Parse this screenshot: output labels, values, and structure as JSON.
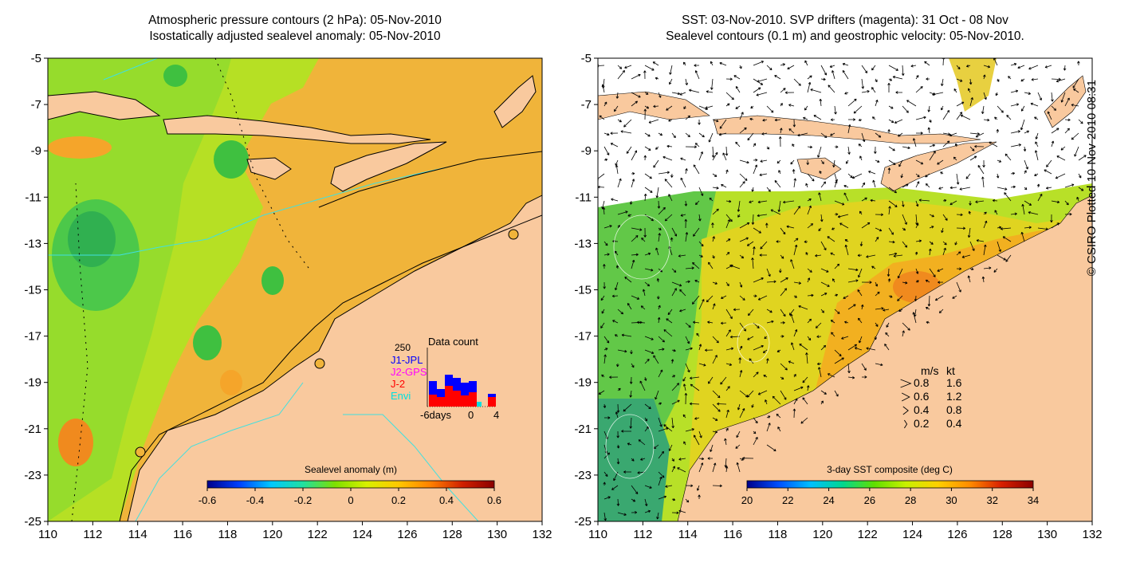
{
  "left_panel": {
    "title_line1": "Atmospheric pressure contours (2 hPa): 05-Nov-2010",
    "title_line2": "Isostatically adjusted sealevel anomaly: 05-Nov-2010",
    "colorbar": {
      "title": "Sealevel anomaly (m)",
      "ticks": [
        "-0.6",
        "-0.4",
        "-0.2",
        "0",
        "0.2",
        "0.4",
        "0.6"
      ],
      "min": -0.6,
      "max": 0.6,
      "colors": [
        "#00008b",
        "#0040ff",
        "#00c8ff",
        "#20e0a0",
        "#7de000",
        "#d8f000",
        "#ffc800",
        "#ff8000",
        "#d02000",
        "#8b0000"
      ]
    },
    "data_count": {
      "title": "Data count",
      "max_label": "250",
      "x_labels": [
        "-6days",
        "0",
        "4"
      ],
      "missions": [
        {
          "name": "J1-JPL",
          "color": "#0000ff"
        },
        {
          "name": "J2-GPS",
          "color": "#ff00ff"
        },
        {
          "name": "J-2",
          "color": "#ff0000"
        },
        {
          "name": "Envi",
          "color": "#00e0e0"
        }
      ]
    }
  },
  "right_panel": {
    "title_line1": "SST: 03-Nov-2010. SVP drifters (magenta): 31 Oct - 08 Nov",
    "title_line2": "Sealevel contours (0.1 m) and geostrophic velocity: 05-Nov-2010.",
    "colorbar": {
      "title": "3-day SST composite (deg C)",
      "ticks": [
        "20",
        "22",
        "24",
        "26",
        "28",
        "30",
        "32",
        "34"
      ],
      "min": 20,
      "max": 34,
      "colors": [
        "#00008b",
        "#0050ff",
        "#00c0ff",
        "#00d890",
        "#60e000",
        "#c8f000",
        "#ffd000",
        "#ff8c00",
        "#d82000",
        "#8b0000"
      ]
    },
    "velocity_legend": {
      "header_ms": "m/s",
      "header_kt": "kt",
      "rows": [
        {
          "ms": "0.8",
          "kt": "1.6",
          "speed": 0.8
        },
        {
          "ms": "0.6",
          "kt": "1.2",
          "speed": 0.6
        },
        {
          "ms": "0.4",
          "kt": "0.8",
          "speed": 0.4
        },
        {
          "ms": "0.2",
          "kt": "0.4",
          "speed": 0.2
        }
      ]
    }
  },
  "axes": {
    "lon_ticks": [
      "110",
      "112",
      "114",
      "116",
      "118",
      "120",
      "122",
      "124",
      "126",
      "128",
      "130",
      "132"
    ],
    "lat_ticks": [
      "-5",
      "-7",
      "-9",
      "-11",
      "-13",
      "-15",
      "-17",
      "-19",
      "-21",
      "-23",
      "-25"
    ],
    "lon_range": [
      110,
      132
    ],
    "lat_range": [
      -25,
      -5
    ]
  },
  "credit": "© CSIRO Plotted 10-Nov-2010 08:31",
  "colors": {
    "land": "#f9c99e",
    "ocean_low": "#7ed321",
    "ocean_high": "#f2a22a",
    "cloud": "#ffffff",
    "contour": "#40e0e0"
  }
}
